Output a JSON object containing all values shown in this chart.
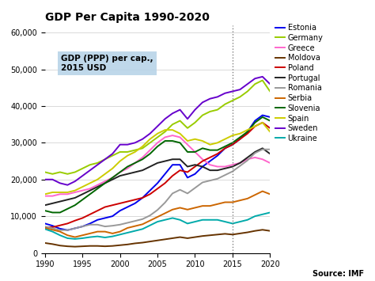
{
  "title": "GDP Per Capita 1990-2020",
  "annotation_label": "GDP (PPP) per cap.,\n2015 USD",
  "source": "Source: IMF",
  "ylim": [
    0,
    62000
  ],
  "yticks": [
    0,
    10000,
    20000,
    30000,
    40000,
    50000,
    60000
  ],
  "ytick_labels": [
    "0",
    "10,000",
    "20,000",
    "30,000",
    "40,000",
    "50,000",
    "60,000"
  ],
  "years": [
    1990,
    1991,
    1992,
    1993,
    1994,
    1995,
    1996,
    1997,
    1998,
    1999,
    2000,
    2001,
    2002,
    2003,
    2004,
    2005,
    2006,
    2007,
    2008,
    2009,
    2010,
    2011,
    2012,
    2013,
    2014,
    2015,
    2016,
    2017,
    2018,
    2019,
    2020
  ],
  "series": {
    "Estonia": {
      "color": "#0000EE",
      "data": [
        8000,
        7400,
        6600,
        6200,
        6700,
        7200,
        8000,
        9000,
        9500,
        10000,
        11500,
        12500,
        13500,
        15000,
        17000,
        19000,
        21500,
        24000,
        24000,
        20500,
        21500,
        23500,
        25000,
        26500,
        28500,
        29500,
        31000,
        33000,
        36000,
        37500,
        37000
      ]
    },
    "Germany": {
      "color": "#99CC00",
      "data": [
        22000,
        21500,
        22000,
        21500,
        22000,
        23000,
        24000,
        24500,
        25500,
        26500,
        27500,
        27500,
        28000,
        28500,
        30000,
        31500,
        33000,
        35000,
        36000,
        34000,
        35500,
        37500,
        38500,
        39000,
        40500,
        41500,
        42500,
        44000,
        46000,
        47000,
        44000
      ]
    },
    "Greece": {
      "color": "#FF66CC",
      "data": [
        15500,
        15500,
        16000,
        16000,
        16500,
        17000,
        17500,
        18500,
        19500,
        20500,
        22000,
        23000,
        24500,
        26000,
        28000,
        30000,
        31500,
        32000,
        31500,
        29500,
        27500,
        25500,
        24000,
        23500,
        23500,
        24000,
        24500,
        25500,
        26000,
        25500,
        24500
      ]
    },
    "Moldova": {
      "color": "#663300",
      "data": [
        2700,
        2400,
        2000,
        1800,
        1700,
        1800,
        1900,
        1900,
        1800,
        1900,
        2100,
        2300,
        2600,
        2800,
        3100,
        3400,
        3700,
        4000,
        4300,
        4000,
        4300,
        4600,
        4800,
        5000,
        5200,
        5000,
        5300,
        5600,
        6000,
        6300,
        6000
      ]
    },
    "Poland": {
      "color": "#CC0000",
      "data": [
        7000,
        7000,
        7500,
        8000,
        8800,
        9500,
        10500,
        11500,
        12500,
        13000,
        13500,
        14000,
        14500,
        15000,
        16000,
        17500,
        19000,
        21000,
        22500,
        22000,
        23500,
        25000,
        26000,
        27000,
        28500,
        29500,
        31000,
        32500,
        34500,
        35500,
        34000
      ]
    },
    "Portugal": {
      "color": "#222222",
      "data": [
        13000,
        13500,
        14000,
        14500,
        15000,
        16000,
        17000,
        18000,
        19000,
        20000,
        21000,
        21500,
        22000,
        22500,
        23500,
        24500,
        25000,
        25500,
        25500,
        23500,
        24000,
        23500,
        22500,
        22500,
        23000,
        23500,
        24500,
        26000,
        27500,
        28500,
        27000
      ]
    },
    "Romania": {
      "color": "#999999",
      "data": [
        7200,
        6700,
        6200,
        6200,
        6700,
        7200,
        7700,
        7700,
        7200,
        7400,
        7700,
        8200,
        8700,
        9200,
        10200,
        11700,
        13700,
        16200,
        17200,
        16200,
        17700,
        19200,
        19700,
        20200,
        21200,
        22200,
        23700,
        25200,
        27200,
        28200,
        28200
      ]
    },
    "Serbia": {
      "color": "#CC6600",
      "data": [
        6800,
        6300,
        5800,
        4800,
        4300,
        4800,
        5300,
        5800,
        5800,
        5300,
        5800,
        6800,
        7300,
        7800,
        8800,
        9800,
        10800,
        11800,
        12300,
        11800,
        12300,
        12800,
        12800,
        13300,
        13800,
        13800,
        14300,
        14800,
        15800,
        16800,
        16000
      ]
    },
    "Slovenia": {
      "color": "#006600",
      "data": [
        11500,
        11000,
        11000,
        12000,
        13000,
        14500,
        16000,
        17500,
        19000,
        20500,
        22000,
        23500,
        24500,
        25500,
        27000,
        29000,
        30500,
        30500,
        30000,
        27500,
        27500,
        28500,
        28000,
        28000,
        29000,
        30000,
        31500,
        33000,
        35500,
        37000,
        36000
      ]
    },
    "Spain": {
      "color": "#CCCC00",
      "data": [
        16000,
        16500,
        16500,
        16500,
        17000,
        18000,
        19000,
        20000,
        21500,
        23000,
        25000,
        26500,
        27500,
        29000,
        31000,
        32500,
        33500,
        33500,
        32500,
        30500,
        31000,
        30500,
        29500,
        30000,
        31000,
        32000,
        32500,
        33500,
        34500,
        35500,
        33000
      ]
    },
    "Sweden": {
      "color": "#6600CC",
      "data": [
        20000,
        20000,
        19000,
        18500,
        19500,
        21000,
        22500,
        24000,
        25500,
        27000,
        29500,
        29500,
        30000,
        31000,
        32500,
        34500,
        36500,
        38000,
        39000,
        36500,
        39000,
        41000,
        42000,
        42500,
        43500,
        44000,
        44500,
        46000,
        47500,
        48000,
        46000
      ]
    },
    "Ukraine": {
      "color": "#00AAAA",
      "data": [
        6500,
        5800,
        4800,
        4000,
        3800,
        4000,
        4300,
        4500,
        4200,
        4500,
        5000,
        5500,
        6000,
        6500,
        7500,
        8500,
        9000,
        9500,
        9000,
        8000,
        8500,
        9000,
        9000,
        9000,
        8500,
        8000,
        8500,
        9000,
        10000,
        10500,
        11000
      ]
    }
  },
  "vline_x": 2015,
  "legend_order": [
    "Estonia",
    "Germany",
    "Greece",
    "Moldova",
    "Poland",
    "Portugal",
    "Romania",
    "Serbia",
    "Slovenia",
    "Spain",
    "Sweden",
    "Ukraine"
  ]
}
